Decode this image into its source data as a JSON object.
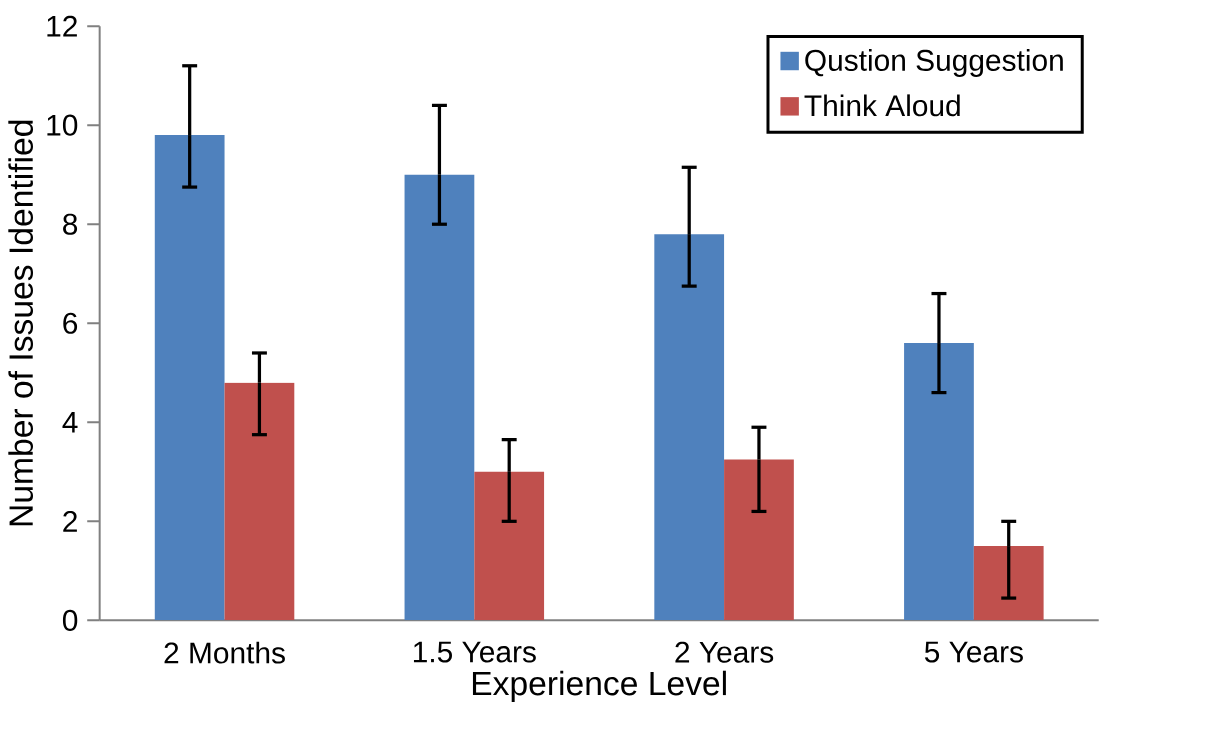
{
  "chart_data": {
    "type": "bar",
    "xlabel": "Experience Level",
    "ylabel": "Number of Issues Identified",
    "categories": [
      "2 Months",
      "1.5 Years",
      "2 Years",
      "5 Years"
    ],
    "series": [
      {
        "name": "Qustion Suggestion",
        "color": "#4f81bd",
        "values": [
          9.8,
          9.0,
          7.8,
          5.6
        ],
        "errors": [
          [
            8.75,
            11.2
          ],
          [
            8.0,
            10.4
          ],
          [
            6.75,
            9.15
          ],
          [
            4.6,
            6.6
          ]
        ]
      },
      {
        "name": "Think Aloud",
        "color": "#c0504d",
        "values": [
          4.8,
          3.0,
          3.25,
          1.5
        ],
        "errors": [
          [
            3.75,
            5.4
          ],
          [
            2.0,
            3.65
          ],
          [
            2.2,
            3.9
          ],
          [
            0.45,
            2.0
          ]
        ]
      }
    ],
    "ylim": [
      0,
      12
    ],
    "yticks": [
      0,
      2,
      4,
      6,
      8,
      10,
      12
    ],
    "grid": false,
    "legend": "top right"
  }
}
